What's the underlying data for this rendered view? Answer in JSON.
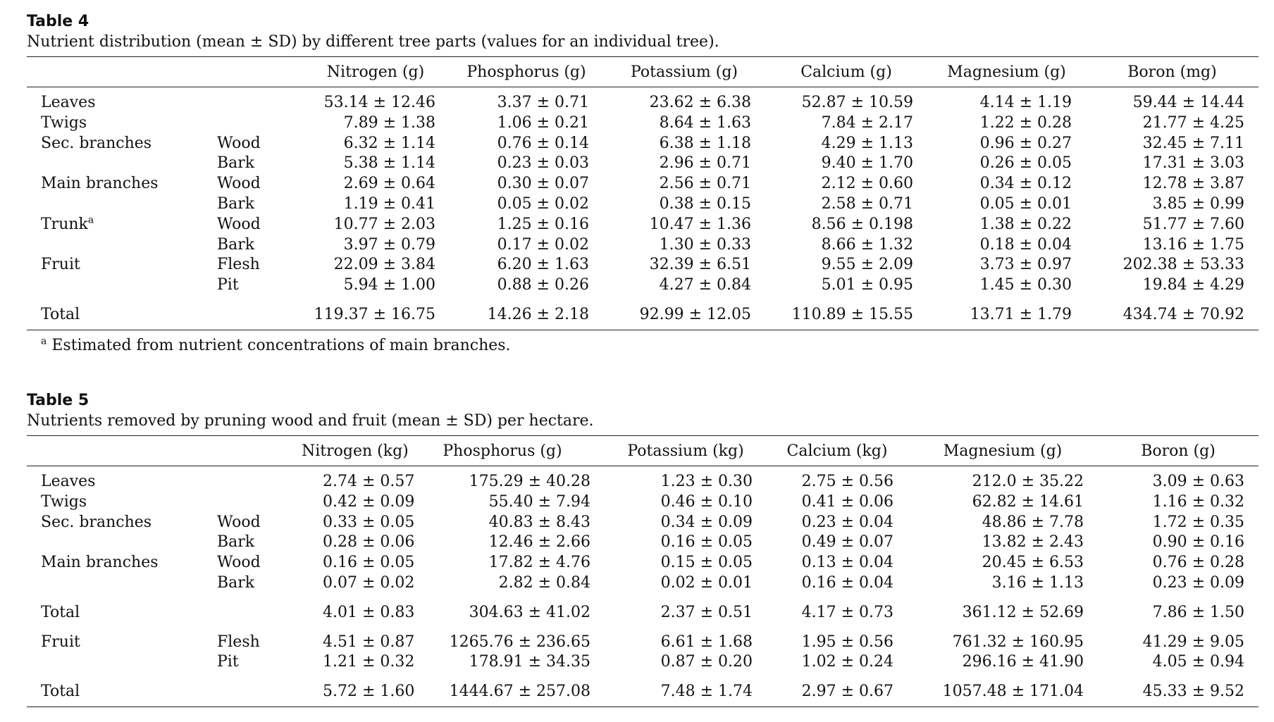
{
  "table4": {
    "label": "Table 4",
    "caption": "Nutrient distribution (mean ± SD) by different tree parts (values for an individual tree).",
    "columns": [
      "Nitrogen (g)",
      "Phosphorus (g)",
      "Potassium (g)",
      "Calcium (g)",
      "Magnesium (g)",
      "Boron (mg)"
    ],
    "rows": [
      {
        "part": "Leaves",
        "sup": "",
        "sub": "",
        "values": [
          "53.14 ± 12.46",
          "3.37 ± 0.71",
          "23.62 ± 6.38",
          "52.87 ± 10.59",
          "4.14 ± 1.19",
          "59.44 ± 14.44"
        ]
      },
      {
        "part": "Twigs",
        "sup": "",
        "sub": "",
        "values": [
          "7.89 ± 1.38",
          "1.06 ± 0.21",
          "8.64 ± 1.63",
          "7.84 ± 2.17",
          "1.22 ± 0.28",
          "21.77 ± 4.25"
        ]
      },
      {
        "part": "Sec. branches",
        "sup": "",
        "sub": "Wood",
        "values": [
          "6.32 ± 1.14",
          "0.76 ± 0.14",
          "6.38 ± 1.18",
          "4.29 ± 1.13",
          "0.96 ± 0.27",
          "32.45 ± 7.11"
        ]
      },
      {
        "part": "",
        "sup": "",
        "sub": "Bark",
        "values": [
          "5.38 ± 1.14",
          "0.23 ± 0.03",
          "2.96 ± 0.71",
          "9.40 ± 1.70",
          "0.26 ± 0.05",
          "17.31 ± 3.03"
        ]
      },
      {
        "part": "Main branches",
        "sup": "",
        "sub": "Wood",
        "values": [
          "2.69 ± 0.64",
          "0.30 ± 0.07",
          "2.56 ± 0.71",
          "2.12 ± 0.60",
          "0.34 ± 0.12",
          "12.78 ± 3.87"
        ]
      },
      {
        "part": "",
        "sup": "",
        "sub": "Bark",
        "values": [
          "1.19 ± 0.41",
          "0.05 ± 0.02",
          "0.38 ± 0.15",
          "2.58 ± 0.71",
          "0.05 ± 0.01",
          "3.85 ± 0.99"
        ]
      },
      {
        "part": "Trunk",
        "sup": "a",
        "sub": "Wood",
        "values": [
          "10.77 ± 2.03",
          "1.25 ± 0.16",
          "10.47 ± 1.36",
          "8.56 ± 0.198",
          "1.38 ± 0.22",
          "51.77 ± 7.60"
        ]
      },
      {
        "part": "",
        "sup": "",
        "sub": "Bark",
        "values": [
          "3.97 ± 0.79",
          "0.17 ± 0.02",
          "1.30 ± 0.33",
          "8.66 ± 1.32",
          "0.18 ± 0.04",
          "13.16 ± 1.75"
        ]
      },
      {
        "part": "Fruit",
        "sup": "",
        "sub": "Flesh",
        "values": [
          "22.09 ± 3.84",
          "6.20 ± 1.63",
          "32.39 ± 6.51",
          "9.55 ± 2.09",
          "3.73 ± 0.97",
          "202.38 ± 53.33"
        ]
      },
      {
        "part": "",
        "sup": "",
        "sub": "Pit",
        "values": [
          "5.94 ± 1.00",
          "0.88 ± 0.26",
          "4.27 ± 0.84",
          "5.01 ± 0.95",
          "1.45 ± 0.30",
          "19.84 ± 4.29"
        ]
      },
      {
        "part": "Total",
        "sup": "",
        "sub": "",
        "values": [
          "119.37 ± 16.75",
          "14.26 ± 2.18",
          "92.99 ± 12.05",
          "110.89 ± 15.55",
          "13.71 ± 1.79",
          "434.74 ± 70.92"
        ]
      }
    ],
    "footnote_mark": "a",
    "footnote": "Estimated from nutrient concentrations of main branches."
  },
  "table5": {
    "label": "Table 5",
    "caption": "Nutrients removed by pruning wood and fruit (mean ± SD) per hectare.",
    "columns": [
      "Nitrogen (kg)",
      "Phosphorus (g)",
      "Potassium (kg)",
      "Calcium (kg)",
      "Magnesium (g)",
      "Boron (g)"
    ],
    "rows": [
      {
        "part": "Leaves",
        "sub": "",
        "values": [
          "2.74 ± 0.57",
          "175.29 ± 40.28",
          "1.23 ± 0.30",
          "2.75 ± 0.56",
          "212.0 ± 35.22",
          "3.09 ± 0.63"
        ]
      },
      {
        "part": "Twigs",
        "sub": "",
        "values": [
          "0.42 ± 0.09",
          "55.40 ± 7.94",
          "0.46 ± 0.10",
          "0.41 ± 0.06",
          "62.82 ± 14.61",
          "1.16 ± 0.32"
        ]
      },
      {
        "part": "Sec. branches",
        "sub": "Wood",
        "values": [
          "0.33 ± 0.05",
          "40.83 ± 8.43",
          "0.34 ± 0.09",
          "0.23 ± 0.04",
          "48.86 ± 7.78",
          "1.72 ± 0.35"
        ]
      },
      {
        "part": "",
        "sub": "Bark",
        "values": [
          "0.28 ± 0.06",
          "12.46 ± 2.66",
          "0.16 ± 0.05",
          "0.49 ± 0.07",
          "13.82 ± 2.43",
          "0.90 ± 0.16"
        ]
      },
      {
        "part": "Main branches",
        "sub": "Wood",
        "values": [
          "0.16 ± 0.05",
          "17.82 ± 4.76",
          "0.15 ± 0.05",
          "0.13 ± 0.04",
          "20.45 ± 6.53",
          "0.76 ± 0.28"
        ]
      },
      {
        "part": "",
        "sub": "Bark",
        "values": [
          "0.07 ± 0.02",
          "2.82 ± 0.84",
          "0.02 ± 0.01",
          "0.16 ± 0.04",
          "3.16 ± 1.13",
          "0.23 ± 0.09"
        ]
      },
      {
        "part": "Total",
        "sub": "",
        "values": [
          "4.01 ± 0.83",
          "304.63 ± 41.02",
          "2.37 ± 0.51",
          "4.17 ± 0.73",
          "361.12 ± 52.69",
          "7.86 ± 1.50"
        ]
      },
      {
        "part": "Fruit",
        "sub": "Flesh",
        "values": [
          "4.51 ± 0.87",
          "1265.76 ± 236.65",
          "6.61 ± 1.68",
          "1.95 ± 0.56",
          "761.32 ± 160.95",
          "41.29 ± 9.05"
        ]
      },
      {
        "part": "",
        "sub": "Pit",
        "values": [
          "1.21 ± 0.32",
          "178.91 ± 34.35",
          "0.87 ± 0.20",
          "1.02 ± 0.24",
          "296.16 ± 41.90",
          "4.05 ± 0.94"
        ]
      },
      {
        "part": "Total",
        "sub": "",
        "values": [
          "5.72 ± 1.60",
          "1444.67 ± 257.08",
          "7.48 ± 1.74",
          "2.97 ± 0.67",
          "1057.48 ± 171.04",
          "45.33 ± 9.52"
        ]
      }
    ]
  }
}
